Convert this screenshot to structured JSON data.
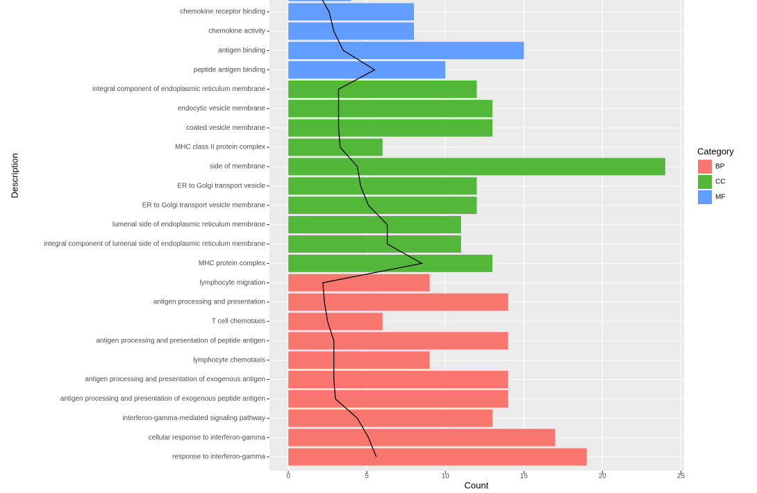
{
  "chart_data": {
    "type": "bar",
    "orientation": "horizontal",
    "x_label": "Count",
    "y_label": "Description",
    "categories": [
      null,
      "chemokine receptor binding",
      "chemokine activity",
      "antigen binding",
      "peptide antigen binding",
      "integral component of endoplasmic reticulum membrane",
      "endocytic vesicle membrane",
      "coated vesicle membrane",
      "MHC class II protein complex",
      "side of membrane",
      "ER to Golgi transport vesicle",
      "ER to Golgi transport vesicle membrane",
      "lumenal side of endoplasmic reticulum membrane",
      "integral component of lumenal side of endoplasmic reticulum membrane",
      "MHC protein complex",
      "lymphocyte migration",
      "antigen processing and presentation",
      "T cell chemotaxis",
      "antigen processing and presentation of peptide antigen",
      "lymphocyte chemotaxis",
      "antigen processing and presentation of exogenous antigen",
      "antigen processing and presentation of exogenous peptide antigen",
      "interferon-gamma-mediated signaling pathway",
      "cellular response to interferon-gamma",
      "response to interferon-gamma"
    ],
    "values": [
      4,
      8,
      8,
      15,
      10,
      12,
      13,
      13,
      6,
      24,
      12,
      12,
      11,
      11,
      13,
      9,
      14,
      6,
      14,
      9,
      14,
      14,
      13,
      17,
      19
    ],
    "groups": [
      "MF",
      "MF",
      "MF",
      "MF",
      "MF",
      "CC",
      "CC",
      "CC",
      "CC",
      "CC",
      "CC",
      "CC",
      "CC",
      "CC",
      "CC",
      "BP",
      "BP",
      "BP",
      "BP",
      "BP",
      "BP",
      "BP",
      "BP",
      "BP",
      "BP"
    ],
    "line": {
      "color": "#000000",
      "values": [
        1.9,
        2.6,
        2.9,
        3.5,
        5.5,
        3.2,
        3.2,
        3.2,
        3.3,
        4.4,
        4.6,
        5.1,
        6.3,
        6.3,
        8.5,
        2.2,
        2.3,
        2.5,
        2.9,
        2.9,
        2.9,
        3.0,
        4.4,
        5.1,
        5.6
      ]
    },
    "legend": {
      "title": "Category",
      "entries": [
        {
          "name": "BP",
          "color": "#f8766d"
        },
        {
          "name": "CC",
          "color": "#53b83a"
        },
        {
          "name": "MF",
          "color": "#619cff"
        }
      ]
    },
    "xlim": [
      -1.2,
      25.2
    ],
    "xticks": [
      0,
      5,
      10,
      15,
      20,
      25
    ],
    "grid": true
  }
}
